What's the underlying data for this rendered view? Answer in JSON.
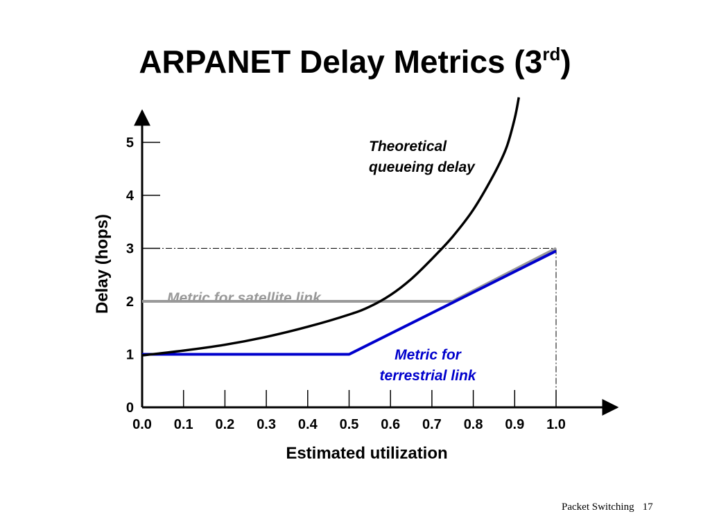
{
  "slide": {
    "title_main": "ARPANET Delay Metrics (3",
    "title_sup": "rd",
    "title_end": ")",
    "footer_text": "Packet Switching",
    "page_number": "17"
  },
  "chart_data": {
    "type": "line",
    "xlabel": "Estimated utilization",
    "ylabel": "Delay (hops)",
    "xlim": [
      0.0,
      1.0
    ],
    "ylim": [
      0,
      5.5
    ],
    "x_ticks": [
      "0.0",
      "0.1",
      "0.2",
      "0.3",
      "0.4",
      "0.5",
      "0.6",
      "0.7",
      "0.8",
      "0.9",
      "1.0"
    ],
    "y_ticks": [
      "0",
      "1",
      "2",
      "3",
      "4",
      "5"
    ],
    "reference_lines": {
      "y": 3,
      "x": 1.0
    },
    "series": [
      {
        "name": "Theoretical queueing delay",
        "label_lines": [
          "Theoretical",
          "queueing delay"
        ],
        "color": "#000000",
        "points": [
          [
            0.0,
            0.98
          ],
          [
            0.1,
            1.07
          ],
          [
            0.2,
            1.18
          ],
          [
            0.3,
            1.33
          ],
          [
            0.4,
            1.52
          ],
          [
            0.5,
            1.75
          ],
          [
            0.55,
            1.9
          ],
          [
            0.6,
            2.12
          ],
          [
            0.65,
            2.42
          ],
          [
            0.7,
            2.8
          ],
          [
            0.75,
            3.22
          ],
          [
            0.8,
            3.73
          ],
          [
            0.85,
            4.4
          ],
          [
            0.88,
            4.9
          ],
          [
            0.9,
            5.45
          ],
          [
            0.91,
            5.85
          ]
        ]
      },
      {
        "name": "Metric for satellite link",
        "label_lines": [
          "Metric for satellite link"
        ],
        "color": "#999999",
        "points": [
          [
            0.0,
            2.0
          ],
          [
            0.75,
            2.0
          ],
          [
            1.0,
            3.0
          ]
        ]
      },
      {
        "name": "Metric for terrestrial link",
        "label_lines": [
          "Metric for",
          "terrestrial link"
        ],
        "color": "#0000cc",
        "points": [
          [
            0.0,
            1.0
          ],
          [
            0.5,
            1.0
          ],
          [
            1.0,
            2.95
          ]
        ]
      }
    ]
  }
}
